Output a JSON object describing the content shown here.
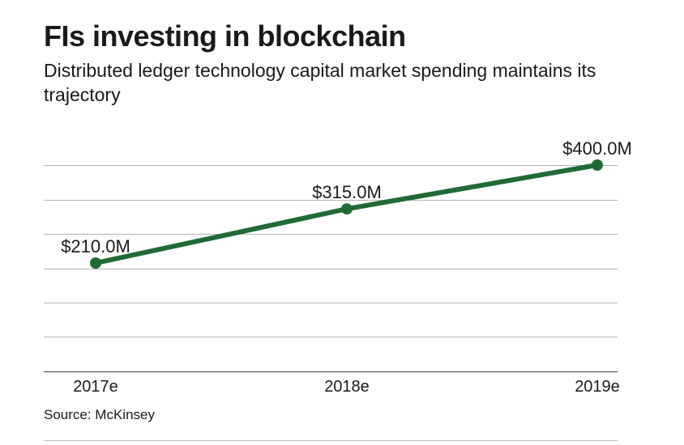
{
  "title": "FIs investing in blockchain",
  "subtitle": "Distributed ledger technology capital market spending maintains its trajectory",
  "source": "Source: McKinsey",
  "colors": {
    "line": "#1f6b35",
    "grid": "#b3b3b3",
    "axis": "#555555",
    "text": "#1a1a1a"
  },
  "chart_data": {
    "type": "line",
    "title": "FIs investing in blockchain",
    "subtitle": "Distributed ledger technology capital market spending maintains its trajectory",
    "categories": [
      "2017e",
      "2018e",
      "2019e"
    ],
    "series": [
      {
        "name": "Distributed ledger technology capital market spending",
        "values": [
          210.0,
          315.0,
          400.0
        ],
        "labels": [
          "$210.0M",
          "$315.0M",
          "$400.0M"
        ]
      }
    ],
    "xlabel": "",
    "ylabel": "",
    "ylim": [
      0,
      400
    ],
    "gridlines": [
      0,
      66.67,
      133.33,
      200,
      266.67,
      333.33,
      400
    ],
    "grid": true,
    "legend": "none"
  }
}
